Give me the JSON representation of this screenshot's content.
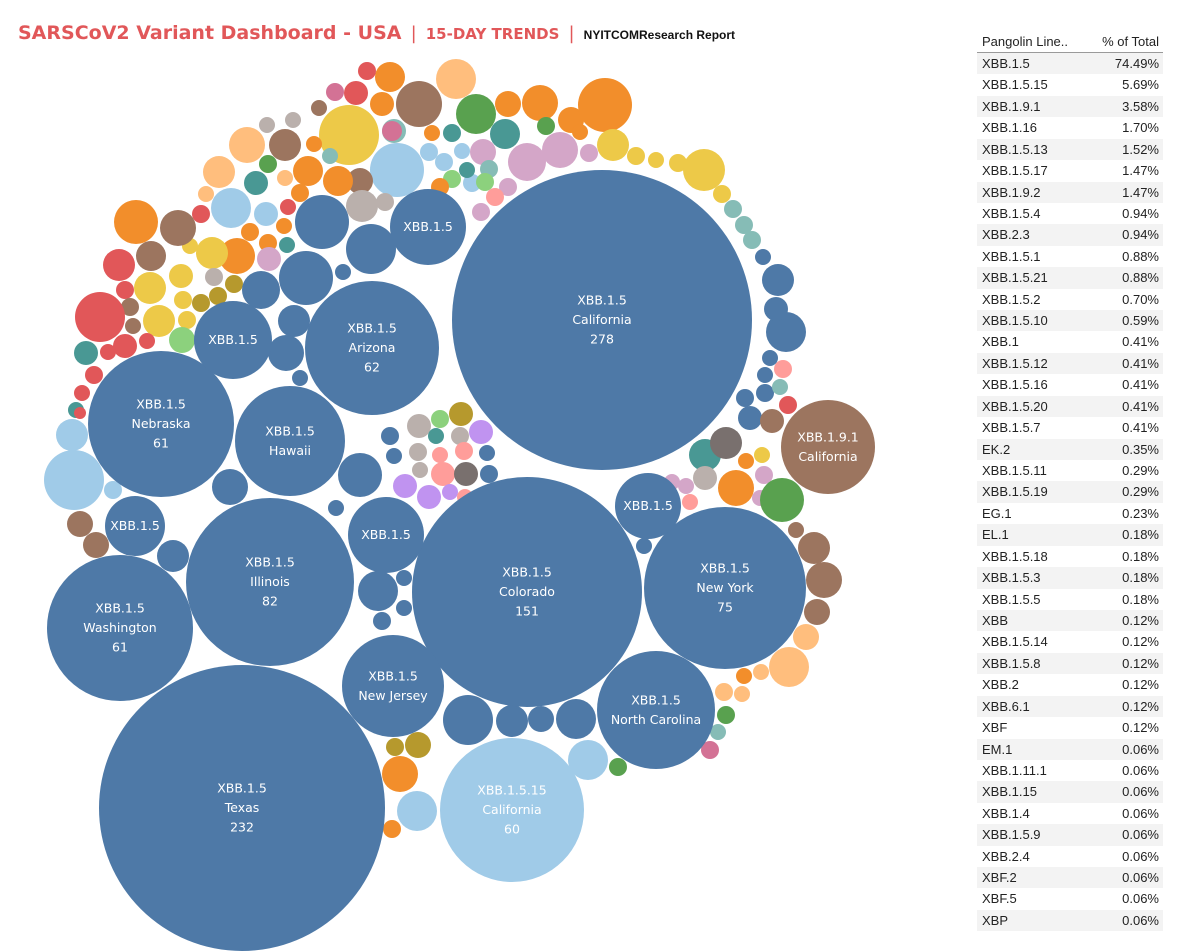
{
  "header": {
    "title": "SARSCoV2 Variant Dashboard - USA",
    "sep1": "|",
    "trends": "15-DAY TRENDS",
    "sep2": "|",
    "report": "NYITCOMResearch Report"
  },
  "colors": {
    "steel_blue": "#4e79a7",
    "light_blue": "#a0cbe8",
    "brown": "#9c755f",
    "orange": "#f28e2b",
    "peach": "#ffbe7d",
    "yellow": "#edc948",
    "green": "#59a14f",
    "teal": "#499894",
    "red": "#e15759",
    "pink": "#d37295",
    "lavender": "#d4a6c8",
    "gray_beige": "#bab0ac",
    "purple": "#c093f0",
    "olive": "#b6992d",
    "light_green": "#8cd17d",
    "salmon": "#ff9d9a",
    "dark_gray": "#79706e",
    "light_teal": "#86bcb6"
  },
  "chart_data": {
    "type": "packed-bubble",
    "bubbles": [
      {
        "variant": "XBB.1.5",
        "state": "California",
        "count": 278
      },
      {
        "variant": "XBB.1.5",
        "state": "Texas",
        "count": 232
      },
      {
        "variant": "XBB.1.5",
        "state": "Colorado",
        "count": 151
      },
      {
        "variant": "XBB.1.5",
        "state": "Illinois",
        "count": 82
      },
      {
        "variant": "XBB.1.5",
        "state": "New York",
        "count": 75
      },
      {
        "variant": "XBB.1.5",
        "state": "Arizona",
        "count": 62
      },
      {
        "variant": "XBB.1.5",
        "state": "Nebraska",
        "count": 61
      },
      {
        "variant": "XBB.1.5",
        "state": "Washington",
        "count": 61
      },
      {
        "variant": "XBB.1.5.15",
        "state": "California",
        "count": 60
      },
      {
        "variant": "XBB.1.5",
        "state": "North Carolina",
        "count": null
      },
      {
        "variant": "XBB.1.5",
        "state": "New Jersey",
        "count": null
      },
      {
        "variant": "XBB.1.5",
        "state": "Hawaii",
        "count": null
      },
      {
        "variant": "XBB.1.9.1",
        "state": "California",
        "count": null
      },
      {
        "variant": "XBB.1.5",
        "state": "",
        "count": null
      },
      {
        "variant": "XBB.1.5",
        "state": "",
        "count": null
      },
      {
        "variant": "XBB.1.5",
        "state": "",
        "count": null
      },
      {
        "variant": "XBB.1.5",
        "state": "",
        "count": null
      },
      {
        "variant": "XBB.1.5",
        "state": "",
        "count": null
      }
    ],
    "table": {
      "headers": [
        "Pangolin Line..",
        "% of Total"
      ],
      "rows": [
        [
          "XBB.1.5",
          "74.49%"
        ],
        [
          "XBB.1.5.15",
          "5.69%"
        ],
        [
          "XBB.1.9.1",
          "3.58%"
        ],
        [
          "XBB.1.16",
          "1.70%"
        ],
        [
          "XBB.1.5.13",
          "1.52%"
        ],
        [
          "XBB.1.5.17",
          "1.47%"
        ],
        [
          "XBB.1.9.2",
          "1.47%"
        ],
        [
          "XBB.1.5.4",
          "0.94%"
        ],
        [
          "XBB.2.3",
          "0.94%"
        ],
        [
          "XBB.1.5.1",
          "0.88%"
        ],
        [
          "XBB.1.5.21",
          "0.88%"
        ],
        [
          "XBB.1.5.2",
          "0.70%"
        ],
        [
          "XBB.1.5.10",
          "0.59%"
        ],
        [
          "XBB.1",
          "0.41%"
        ],
        [
          "XBB.1.5.12",
          "0.41%"
        ],
        [
          "XBB.1.5.16",
          "0.41%"
        ],
        [
          "XBB.1.5.20",
          "0.41%"
        ],
        [
          "XBB.1.5.7",
          "0.41%"
        ],
        [
          "EK.2",
          "0.35%"
        ],
        [
          "XBB.1.5.11",
          "0.29%"
        ],
        [
          "XBB.1.5.19",
          "0.29%"
        ],
        [
          "EG.1",
          "0.23%"
        ],
        [
          "EL.1",
          "0.18%"
        ],
        [
          "XBB.1.5.18",
          "0.18%"
        ],
        [
          "XBB.1.5.3",
          "0.18%"
        ],
        [
          "XBB.1.5.5",
          "0.18%"
        ],
        [
          "XBB",
          "0.12%"
        ],
        [
          "XBB.1.5.14",
          "0.12%"
        ],
        [
          "XBB.1.5.8",
          "0.12%"
        ],
        [
          "XBB.2",
          "0.12%"
        ],
        [
          "XBB.6.1",
          "0.12%"
        ],
        [
          "XBF",
          "0.12%"
        ],
        [
          "EM.1",
          "0.06%"
        ],
        [
          "XBB.1.11.1",
          "0.06%"
        ],
        [
          "XBB.1.15",
          "0.06%"
        ],
        [
          "XBB.1.4",
          "0.06%"
        ],
        [
          "XBB.1.5.9",
          "0.06%"
        ],
        [
          "XBB.2.4",
          "0.06%"
        ],
        [
          "XBF.2",
          "0.06%"
        ],
        [
          "XBF.5",
          "0.06%"
        ],
        [
          "XBP",
          "0.06%"
        ]
      ]
    }
  }
}
